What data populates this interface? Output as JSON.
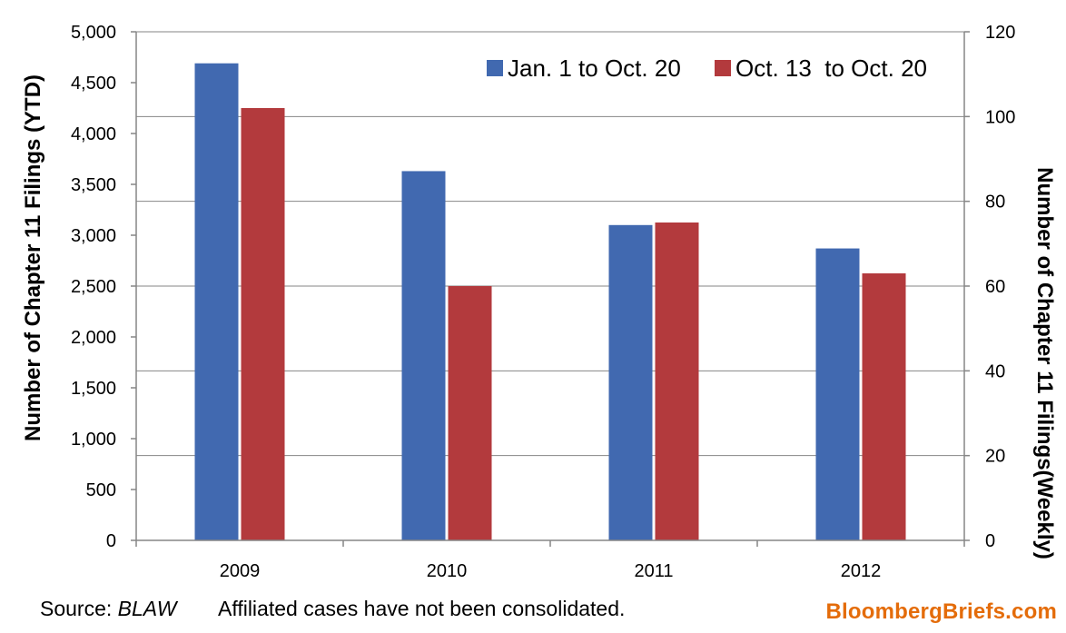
{
  "chart_data": {
    "type": "bar",
    "categories": [
      "2009",
      "2010",
      "2011",
      "2012"
    ],
    "series": [
      {
        "name": "Jan. 1 to Oct. 20",
        "axis": "left",
        "color": "#4169b0",
        "values": [
          4690,
          3630,
          3100,
          2870
        ]
      },
      {
        "name": "Oct. 13  to Oct. 20",
        "axis": "right",
        "color": "#b33a3d",
        "values": [
          102,
          60,
          75,
          63
        ]
      }
    ],
    "ylabel": "Number of Chapter 11 Filings  (YTD)",
    "y2label": "Number of Chapter 11 Filings(Weekly)",
    "ylim": [
      0,
      5000
    ],
    "y2lim": [
      0,
      120
    ],
    "yticks": [
      0,
      500,
      1000,
      1500,
      2000,
      2500,
      3000,
      3500,
      4000,
      4500,
      5000
    ],
    "y2ticks": [
      0,
      20,
      40,
      60,
      80,
      100,
      120
    ],
    "ytick_labels": [
      "0",
      "500",
      "1,000",
      "1,500",
      "2,000",
      "2,500",
      "3,000",
      "3,500",
      "4,000",
      "4,500",
      "5,000"
    ],
    "y2tick_labels": [
      "0",
      "20",
      "40",
      "60",
      "80",
      "100",
      "120"
    ],
    "grid": true,
    "legend_position": "top-right"
  },
  "footer": {
    "source_prefix": "Source: ",
    "source_name": "BLAW",
    "note": "Affiliated cases have not been consolidated.",
    "brand": "BloombergBriefs.com"
  },
  "colors": {
    "bar_ytd": "#4169b0",
    "bar_weekly": "#b33a3d",
    "brand": "#e46c0a",
    "grid": "#868686"
  }
}
